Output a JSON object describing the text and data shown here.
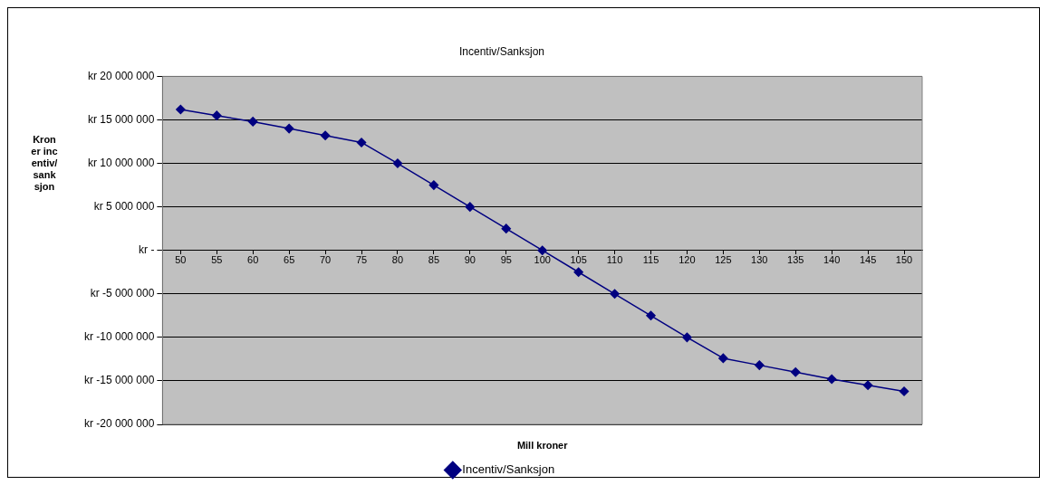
{
  "chart_data": {
    "type": "line",
    "title": "Incentiv/Sanksjon",
    "xlabel": "Mill kroner",
    "ylabel": "Kroner incentiv/sanksjon",
    "categories": [
      "50",
      "55",
      "60",
      "65",
      "70",
      "75",
      "80",
      "85",
      "90",
      "95",
      "100",
      "105",
      "110",
      "115",
      "120",
      "125",
      "130",
      "135",
      "140",
      "145",
      "150"
    ],
    "series": [
      {
        "name": "Incentiv/Sanksjon",
        "color": "#000080",
        "values": [
          16200000,
          15500000,
          14800000,
          14000000,
          13200000,
          12400000,
          10000000,
          7500000,
          5000000,
          2500000,
          0,
          -2500000,
          -5000000,
          -7500000,
          -10000000,
          -12400000,
          -13200000,
          -14000000,
          -14800000,
          -15500000,
          -16200000
        ]
      }
    ],
    "ylim": [
      -20000000,
      20000000
    ],
    "yticks": [
      {
        "value": -20000000,
        "label": "kr -20 000 000"
      },
      {
        "value": -15000000,
        "label": "kr -15 000 000"
      },
      {
        "value": -10000000,
        "label": "kr -10 000 000"
      },
      {
        "value": -5000000,
        "label": "kr -5 000 000"
      },
      {
        "value": 0,
        "label": "kr -"
      },
      {
        "value": 5000000,
        "label": "kr 5 000 000"
      },
      {
        "value": 10000000,
        "label": "kr 10 000 000"
      },
      {
        "value": 15000000,
        "label": "kr 15 000 000"
      },
      {
        "value": 20000000,
        "label": "kr 20 000 000"
      }
    ],
    "grid": "y",
    "legend": "bottom",
    "marker": "diamond",
    "line_style": "solid"
  }
}
